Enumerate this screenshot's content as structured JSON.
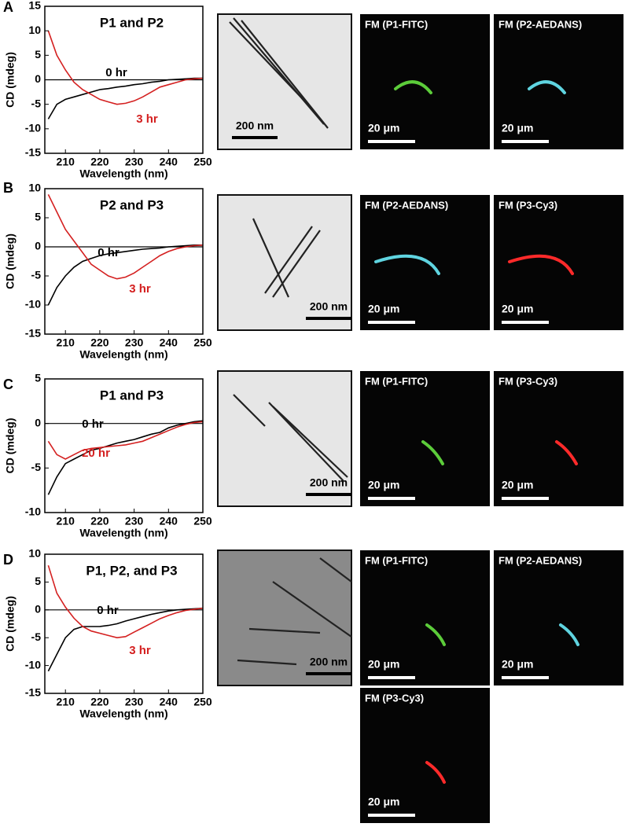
{
  "chart_data": [
    {
      "type": "line",
      "title": "P1 and P2",
      "xlabel": "Wavelength (nm)",
      "ylabel": "CD (mdeg)",
      "x": [
        205,
        207.5,
        210,
        212.5,
        215,
        217.5,
        220,
        222.5,
        225,
        227.5,
        230,
        232.5,
        235,
        237.5,
        240,
        242.5,
        245,
        247.5,
        250
      ],
      "xlim": [
        204,
        250
      ],
      "xticks": [
        210,
        220,
        230,
        240,
        250
      ],
      "ylim": [
        -15,
        15
      ],
      "yticks": [
        -15,
        -10,
        -5,
        0,
        5,
        10,
        15
      ],
      "series": [
        {
          "name": "0 hr",
          "color": "#000000",
          "values": [
            -8,
            -5,
            -4,
            -3.5,
            -3,
            -2.5,
            -2,
            -1.8,
            -1.5,
            -1.3,
            -1,
            -0.8,
            -0.5,
            -0.3,
            0,
            0.1,
            0.2,
            0.3,
            0.3
          ]
        },
        {
          "name": "3 hr",
          "color": "#d42020",
          "values": [
            10,
            5,
            2,
            -0.5,
            -2,
            -3,
            -4,
            -4.5,
            -5,
            -4.8,
            -4.3,
            -3.5,
            -2.5,
            -1.5,
            -1,
            -0.5,
            0,
            0.2,
            0.3
          ]
        }
      ]
    },
    {
      "type": "line",
      "title": "P2 and P3",
      "xlabel": "Wavelength (nm)",
      "ylabel": "CD (mdeg)",
      "x": [
        205,
        207.5,
        210,
        212.5,
        215,
        217.5,
        220,
        222.5,
        225,
        227.5,
        230,
        232.5,
        235,
        237.5,
        240,
        242.5,
        245,
        247.5,
        250
      ],
      "xlim": [
        204,
        250
      ],
      "xticks": [
        210,
        220,
        230,
        240,
        250
      ],
      "ylim": [
        -15,
        10
      ],
      "yticks": [
        -15,
        -10,
        -5,
        0,
        5,
        10
      ],
      "series": [
        {
          "name": "0 hr",
          "color": "#000000",
          "values": [
            -10,
            -7,
            -5,
            -3.5,
            -2.5,
            -2,
            -1.5,
            -1.2,
            -1,
            -0.8,
            -0.6,
            -0.4,
            -0.3,
            -0.2,
            0,
            0.1,
            0.2,
            0.3,
            0.3
          ]
        },
        {
          "name": "3 hr",
          "color": "#d42020",
          "values": [
            9,
            6,
            3,
            1,
            -1,
            -3,
            -4,
            -5,
            -5.5,
            -5.2,
            -4.5,
            -3.5,
            -2.5,
            -1.5,
            -0.8,
            -0.3,
            0,
            0.2,
            0.3
          ]
        }
      ]
    },
    {
      "type": "line",
      "title": "P1 and P3",
      "xlabel": "Wavelength (nm)",
      "ylabel": "CD (mdeg)",
      "x": [
        205,
        207.5,
        210,
        212.5,
        215,
        217.5,
        220,
        222.5,
        225,
        227.5,
        230,
        232.5,
        235,
        237.5,
        240,
        242.5,
        245,
        247.5,
        250
      ],
      "xlim": [
        204,
        250
      ],
      "xticks": [
        210,
        220,
        230,
        240,
        250
      ],
      "ylim": [
        -10,
        5
      ],
      "yticks": [
        -10,
        -5,
        0,
        5
      ],
      "series": [
        {
          "name": "0 hr",
          "color": "#000000",
          "values": [
            -8,
            -6,
            -4.5,
            -4,
            -3.5,
            -3,
            -2.8,
            -2.5,
            -2.2,
            -2,
            -1.8,
            -1.5,
            -1.2,
            -1,
            -0.5,
            -0.2,
            0,
            0.2,
            0.3
          ]
        },
        {
          "name": "20 hr",
          "color": "#d42020",
          "values": [
            -2,
            -3.5,
            -4,
            -3.5,
            -3,
            -2.8,
            -2.7,
            -2.6,
            -2.5,
            -2.4,
            -2.2,
            -2,
            -1.6,
            -1.2,
            -0.8,
            -0.4,
            -0.1,
            0.1,
            0.2
          ]
        }
      ]
    },
    {
      "type": "line",
      "title": "P1, P2, and P3",
      "xlabel": "Wavelength (nm)",
      "ylabel": "CD (mdeg)",
      "x": [
        205,
        207.5,
        210,
        212.5,
        215,
        217.5,
        220,
        222.5,
        225,
        227.5,
        230,
        232.5,
        235,
        237.5,
        240,
        242.5,
        245,
        247.5,
        250
      ],
      "xlim": [
        204,
        250
      ],
      "xticks": [
        210,
        220,
        230,
        240,
        250
      ],
      "ylim": [
        -15,
        10
      ],
      "yticks": [
        -15,
        -10,
        -5,
        0,
        5,
        10
      ],
      "series": [
        {
          "name": "0 hr",
          "color": "#000000",
          "values": [
            -11,
            -8,
            -5,
            -3.5,
            -3,
            -3,
            -3,
            -2.8,
            -2.5,
            -2,
            -1.6,
            -1.2,
            -0.8,
            -0.5,
            -0.2,
            0,
            0.1,
            0.2,
            0.3
          ]
        },
        {
          "name": "3 hr",
          "color": "#d42020",
          "values": [
            8,
            3,
            0.5,
            -1.5,
            -3,
            -3.8,
            -4.2,
            -4.6,
            -5,
            -4.8,
            -4,
            -3.2,
            -2.4,
            -1.6,
            -1,
            -0.5,
            -0.1,
            0.1,
            0.3
          ]
        }
      ]
    }
  ],
  "panels": [
    {
      "letter": "A",
      "tem_scale": "200 nm",
      "fm": [
        {
          "label": "FM (P1-FITC)",
          "scale": "20 μm",
          "color": "#5ccc3a"
        },
        {
          "label": "FM (P2-AEDANS)",
          "scale": "20 μm",
          "color": "#5fd4e0"
        }
      ]
    },
    {
      "letter": "B",
      "tem_scale": "200 nm",
      "fm": [
        {
          "label": "FM (P2-AEDANS)",
          "scale": "20 μm",
          "color": "#5fd4e0"
        },
        {
          "label": "FM (P3-Cy3)",
          "scale": "20 μm",
          "color": "#ff2a2a"
        }
      ]
    },
    {
      "letter": "C",
      "tem_scale": "200 nm",
      "fm": [
        {
          "label": "FM (P1-FITC)",
          "scale": "20 μm",
          "color": "#5ccc3a"
        },
        {
          "label": "FM (P3-Cy3)",
          "scale": "20 μm",
          "color": "#ff2a2a"
        }
      ]
    },
    {
      "letter": "D",
      "tem_scale": "200 nm",
      "fm": [
        {
          "label": "FM (P1-FITC)",
          "scale": "20 μm",
          "color": "#5ccc3a"
        },
        {
          "label": "FM (P2-AEDANS)",
          "scale": "20 μm",
          "color": "#5fd4e0"
        },
        {
          "label": "FM (P3-Cy3)",
          "scale": "20 μm",
          "color": "#ff2a2a"
        }
      ]
    }
  ]
}
